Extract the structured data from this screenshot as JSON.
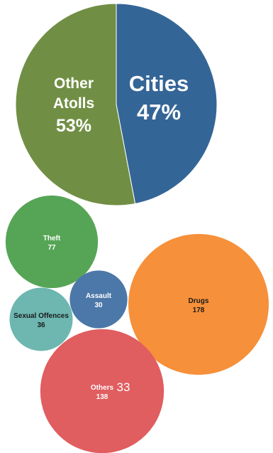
{
  "chart_data": [
    {
      "type": "pie",
      "slices": [
        {
          "label": "Cities",
          "value": 47,
          "value_label": "47%",
          "color": "#346597"
        },
        {
          "label": "Other Atolls",
          "label_lines": [
            "Other",
            "Atolls"
          ],
          "value": 53,
          "value_label": "53%",
          "color": "#718f44"
        }
      ]
    },
    {
      "type": "bubble",
      "bubbles": [
        {
          "label": "Theft",
          "value": 77,
          "value_label": "77",
          "color": "#56a556",
          "text_color": "#ffffff"
        },
        {
          "label": "Drugs",
          "value": 178,
          "value_label": "178",
          "color": "#f6903a",
          "text_color": "#1a1a1a"
        },
        {
          "label": "Assault",
          "value": 30,
          "value_label": "30",
          "color": "#4b78a8",
          "text_color": "#ffffff"
        },
        {
          "label": "Sexual Offences",
          "value": 36,
          "value_label": "36",
          "color": "#6db7b0",
          "text_color": "#1a1a1a"
        },
        {
          "label": "Others",
          "value": 138,
          "value_label": "138",
          "extra_label": "33",
          "color": "#e05d60",
          "text_color": "#ffffff"
        }
      ]
    }
  ]
}
